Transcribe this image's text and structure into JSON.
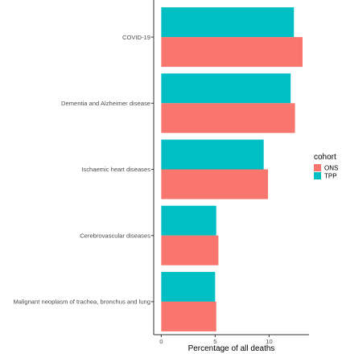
{
  "chart_data": {
    "type": "bar",
    "orientation": "horizontal",
    "categories": [
      "COVID-19",
      "Dementia and Alzheimer disease",
      "Ischaemic heart diseases",
      "Cerebrovascular diseases",
      "Malignant neoplasm of trachea, bronchus and lung"
    ],
    "series": [
      {
        "name": "ONS",
        "color": "#F8766D",
        "values": [
          13.1,
          12.4,
          9.9,
          5.3,
          5.1
        ]
      },
      {
        "name": "TPP",
        "color": "#00BFC4",
        "values": [
          12.3,
          12.0,
          9.5,
          5.1,
          5.0
        ]
      }
    ],
    "xlabel": "Percentage of all deaths",
    "ylabel": "",
    "xlim": [
      -0.7,
      13.7
    ],
    "xticks": [
      0,
      5,
      10
    ],
    "xtick_labels": [
      "0",
      "5",
      "10"
    ],
    "grid": false,
    "legend": {
      "title": "cohort",
      "position": "right"
    }
  }
}
